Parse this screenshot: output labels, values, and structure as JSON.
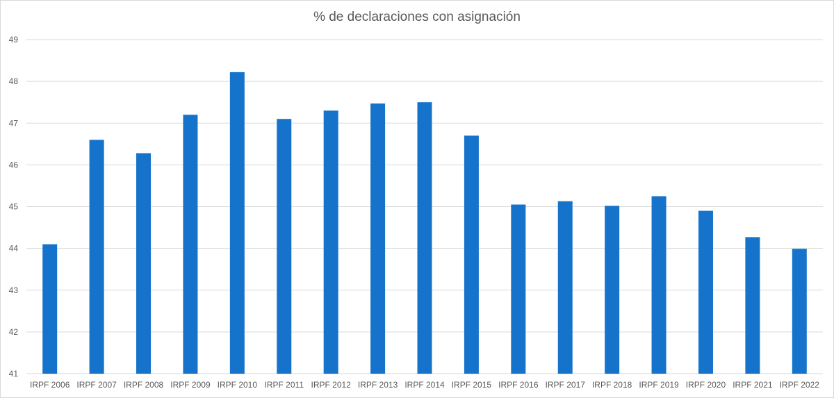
{
  "chart_data": {
    "type": "bar",
    "title": "% de declaraciones con asignación",
    "xlabel": "",
    "ylabel": "",
    "ylim": [
      41,
      49
    ],
    "yticks": [
      41,
      42,
      43,
      44,
      45,
      46,
      47,
      48,
      49
    ],
    "grid": true,
    "legend": "none",
    "bar_color": "#1673cc",
    "categories": [
      "IRPF 2006",
      "IRPF 2007",
      "IRPF 2008",
      "IRPF 2009",
      "IRPF 2010",
      "IRPF 2011",
      "IRPF 2012",
      "IRPF 2013",
      "IRPF 2014",
      "IRPF 2015",
      "IRPF 2016",
      "IRPF 2017",
      "IRPF 2018",
      "IRPF 2019",
      "IRPF 2020",
      "IRPF 2021",
      "IRPF 2022"
    ],
    "values": [
      44.1,
      46.6,
      46.28,
      47.2,
      48.22,
      47.1,
      47.3,
      47.47,
      47.5,
      46.7,
      45.05,
      45.13,
      45.02,
      45.25,
      44.9,
      44.27,
      43.99
    ]
  }
}
